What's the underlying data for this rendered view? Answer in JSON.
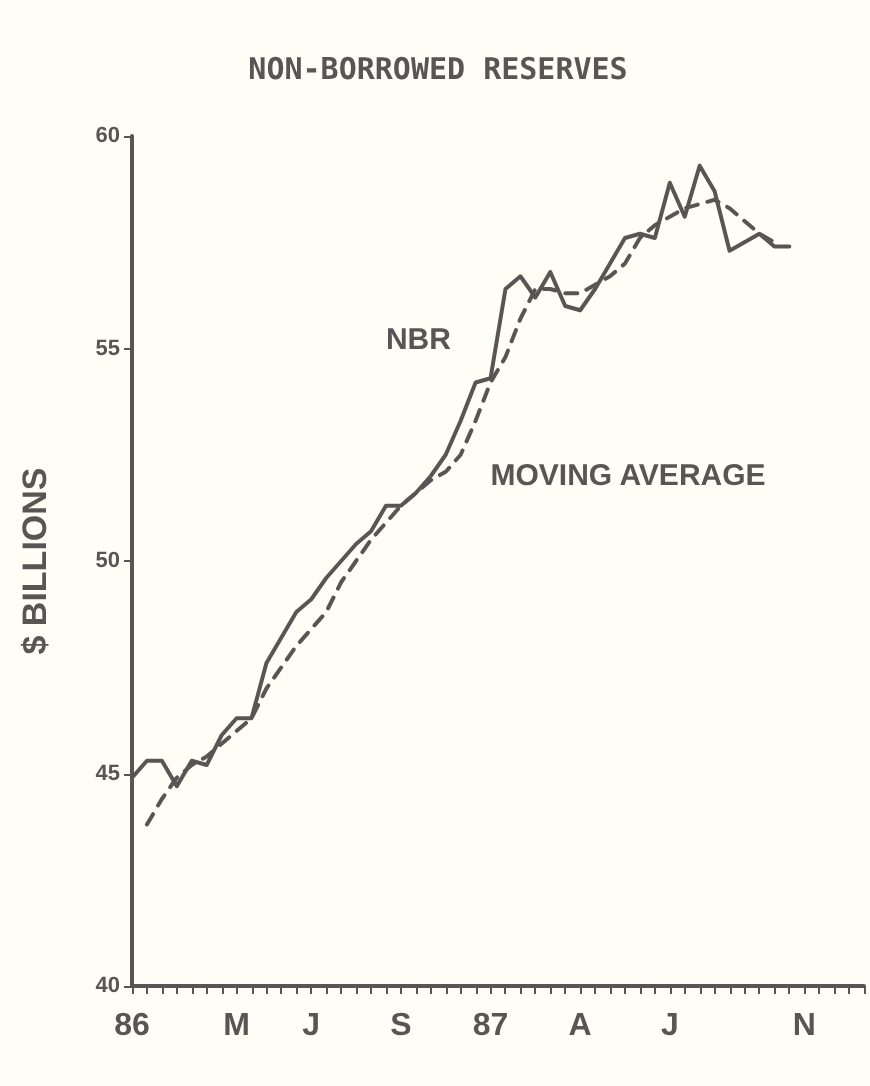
{
  "chart_data": {
    "type": "line",
    "title": "NON-BORROWED RESERVES",
    "ylabel": "$ BILLIONS",
    "categories": [
      "86",
      null,
      null,
      null,
      null,
      null,
      null,
      "M",
      null,
      null,
      null,
      null,
      "J",
      null,
      null,
      null,
      null,
      null,
      "S",
      null,
      null,
      null,
      null,
      null,
      "87",
      null,
      null,
      null,
      null,
      null,
      "A",
      null,
      null,
      null,
      null,
      null,
      "J",
      null,
      null,
      null,
      null,
      null,
      null,
      null,
      null,
      "N",
      null,
      null,
      null,
      null
    ],
    "series": [
      {
        "name": "NBR",
        "color": "#5a5555",
        "line_style": "solid",
        "values": [
          44.9,
          45.3,
          45.3,
          44.7,
          45.3,
          45.2,
          45.9,
          46.3,
          46.3,
          47.6,
          48.2,
          48.8,
          49.1,
          49.6,
          50.0,
          50.4,
          50.7,
          51.3,
          51.3,
          51.6,
          52.0,
          52.5,
          53.3,
          54.2,
          54.3,
          56.4,
          56.7,
          56.2,
          56.8,
          56.0,
          55.9,
          56.4,
          57.0,
          57.6,
          57.7,
          57.6,
          58.9,
          58.1,
          59.3,
          58.7,
          57.3,
          57.5,
          57.7,
          57.4,
          57.4,
          null,
          null,
          null,
          null,
          null
        ]
      },
      {
        "name": "MOVING AVERAGE",
        "color": "#5a5555",
        "line_style": "dashed",
        "values": [
          null,
          43.8,
          44.4,
          44.9,
          45.2,
          45.4,
          45.7,
          46.0,
          46.3,
          47.0,
          47.5,
          48.0,
          48.4,
          48.8,
          49.5,
          50.0,
          50.5,
          50.9,
          51.3,
          51.6,
          51.9,
          52.1,
          52.5,
          53.3,
          54.2,
          54.8,
          55.7,
          56.4,
          56.4,
          56.3,
          56.3,
          56.5,
          56.7,
          57.0,
          57.6,
          57.9,
          58.1,
          58.3,
          58.4,
          58.5,
          58.3,
          58.0,
          57.7,
          57.5,
          null,
          null,
          null,
          null,
          null,
          null
        ]
      }
    ],
    "ylim": [
      40,
      60
    ],
    "yticks": [
      40,
      45,
      50,
      55,
      60
    ],
    "grid": false,
    "legend": false,
    "marker": "none"
  }
}
